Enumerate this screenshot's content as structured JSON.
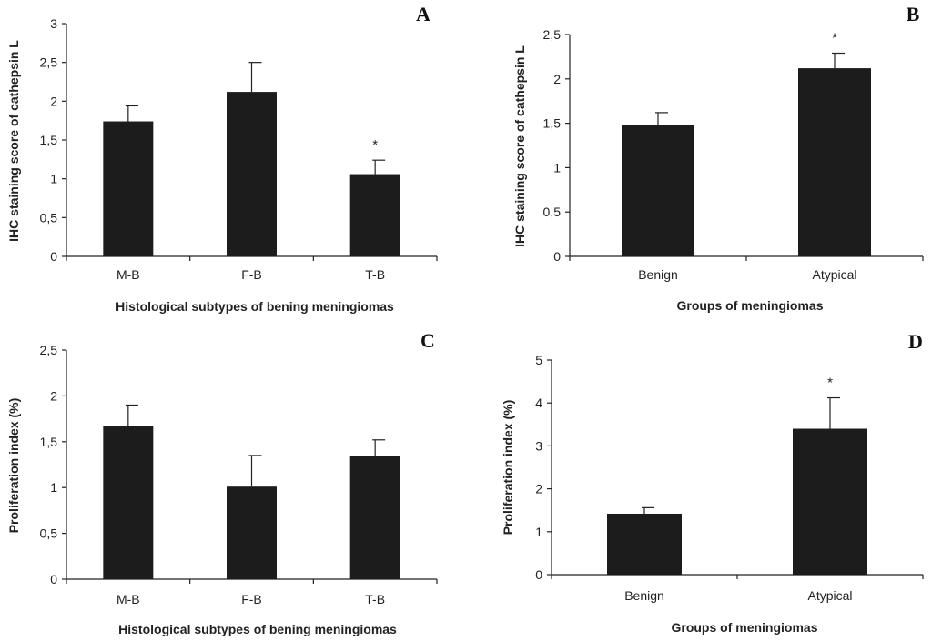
{
  "chart_data": [
    {
      "type": "bar",
      "panel": "A",
      "categories": [
        "M-B",
        "F-B",
        "T-B"
      ],
      "values": [
        1.74,
        2.12,
        1.06
      ],
      "errors": [
        0.2,
        0.38,
        0.18
      ],
      "significance": [
        "",
        "",
        "*"
      ],
      "xlabel": "Histological subtypes of bening meningiomas",
      "ylabel": "IHC staining score of cathepsin L",
      "ylim": [
        0,
        3
      ],
      "yticks": [
        "0",
        "0,5",
        "1",
        "1,5",
        "2",
        "2,5",
        "3"
      ],
      "ytick_values": [
        0,
        0.5,
        1,
        1.5,
        2,
        2.5,
        3
      ],
      "grid": false
    },
    {
      "type": "bar",
      "panel": "B",
      "categories": [
        "Benign",
        "Atypical"
      ],
      "values": [
        1.48,
        2.12
      ],
      "errors": [
        0.14,
        0.17
      ],
      "significance": [
        "",
        "*"
      ],
      "xlabel": "Groups of meningiomas",
      "ylabel": "IHC staining score of cathepsin L",
      "ylim": [
        0,
        2.5
      ],
      "yticks": [
        "0",
        "0,5",
        "1",
        "1,5",
        "2",
        "2,5"
      ],
      "ytick_values": [
        0,
        0.5,
        1,
        1.5,
        2,
        2.5
      ],
      "grid": false
    },
    {
      "type": "bar",
      "panel": "C",
      "categories": [
        "M-B",
        "F-B",
        "T-B"
      ],
      "values": [
        1.67,
        1.01,
        1.34
      ],
      "errors": [
        0.23,
        0.34,
        0.18
      ],
      "significance": [
        "",
        "",
        ""
      ],
      "xlabel": "Histological subtypes of bening meningiomas",
      "ylabel": "Proliferation index (%)",
      "ylim": [
        0,
        2.5
      ],
      "yticks": [
        "0",
        "0,5",
        "1",
        "1,5",
        "2",
        "2,5"
      ],
      "ytick_values": [
        0,
        0.5,
        1,
        1.5,
        2,
        2.5
      ],
      "grid": false
    },
    {
      "type": "bar",
      "panel": "D",
      "categories": [
        "Benign",
        "Atypical"
      ],
      "values": [
        1.42,
        3.4
      ],
      "errors": [
        0.14,
        0.72
      ],
      "significance": [
        "",
        "*"
      ],
      "xlabel": "Groups of meningiomas",
      "ylabel": "Proliferation index (%)",
      "ylim": [
        0,
        5
      ],
      "yticks": [
        "0",
        "1",
        "2",
        "3",
        "4",
        "5"
      ],
      "ytick_values": [
        0,
        1,
        2,
        3,
        4,
        5
      ],
      "grid": false
    }
  ]
}
